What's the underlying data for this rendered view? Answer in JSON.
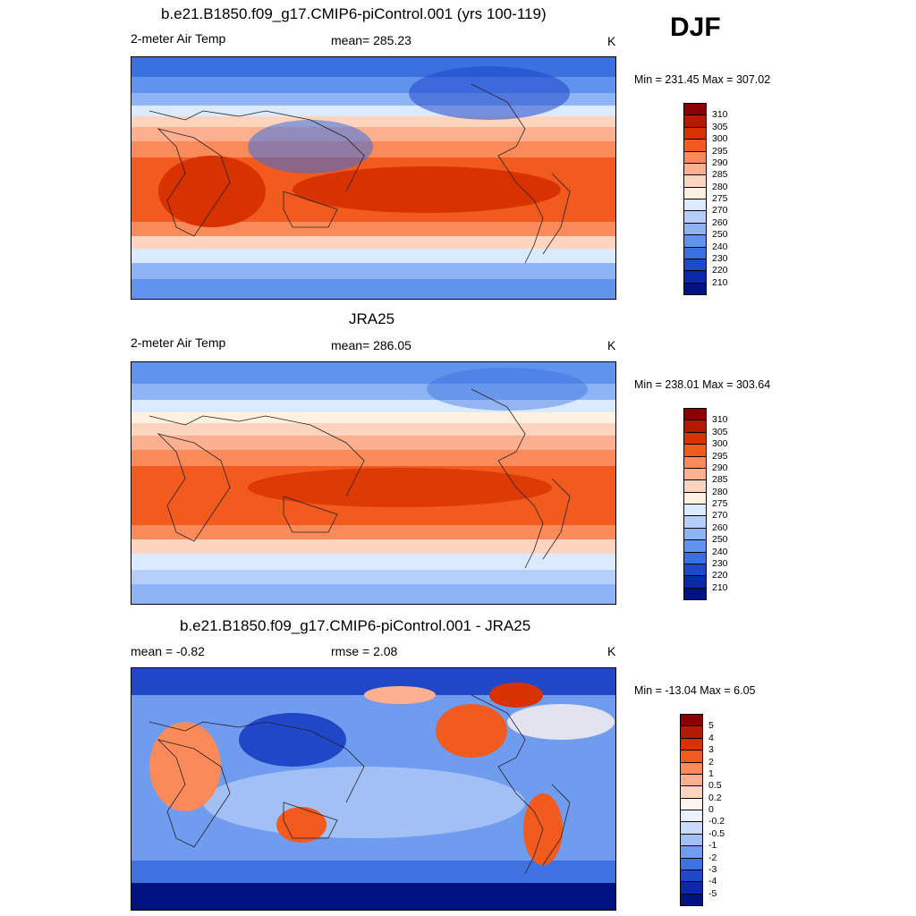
{
  "header": {
    "season": "DJF"
  },
  "panels": [
    {
      "title": "b.e21.B1850.f09_g17.CMIP6-piControl.001 (yrs 100-119)",
      "left_label": "2-meter Air Temp",
      "center_label": "mean= 285.23",
      "unit": "K",
      "minmax": "Min = 231.45 Max = 307.02",
      "colorbar": {
        "labels": [
          "310",
          "305",
          "300",
          "295",
          "290",
          "285",
          "280",
          "275",
          "270",
          "260",
          "250",
          "240",
          "230",
          "220",
          "210"
        ],
        "colors": [
          "#8b0000",
          "#b51a00",
          "#d83200",
          "#f25a1e",
          "#fa8a5a",
          "#fcb090",
          "#fdd5bf",
          "#fff0e0",
          "#dceaff",
          "#b6cffa",
          "#8fb4f5",
          "#5f93ee",
          "#3a70e0",
          "#1f47c8",
          "#0c2aa8",
          "#001380"
        ]
      }
    },
    {
      "title": "JRA25",
      "left_label": "2-meter Air Temp",
      "center_label": "mean= 286.05",
      "unit": "K",
      "minmax": "Min = 238.01 Max = 303.64",
      "colorbar": {
        "labels": [
          "310",
          "305",
          "300",
          "295",
          "290",
          "285",
          "280",
          "275",
          "270",
          "260",
          "250",
          "240",
          "230",
          "220",
          "210"
        ],
        "colors": [
          "#8b0000",
          "#b51a00",
          "#d83200",
          "#f25a1e",
          "#fa8a5a",
          "#fcb090",
          "#fdd5bf",
          "#fff0e0",
          "#dceaff",
          "#b6cffa",
          "#8fb4f5",
          "#5f93ee",
          "#3a70e0",
          "#1f47c8",
          "#0c2aa8",
          "#001380"
        ]
      }
    },
    {
      "title": "b.e21.B1850.f09_g17.CMIP6-piControl.001 - JRA25",
      "left_label": "mean =  -0.82",
      "center_label": "rmse =   2.08",
      "unit": "K",
      "minmax": "Min = -13.04 Max =   6.05",
      "colorbar": {
        "labels": [
          "5",
          "4",
          "3",
          "2",
          "1",
          "0.5",
          "0.2",
          "0",
          "-0.2",
          "-0.5",
          "-1",
          "-2",
          "-3",
          "-4",
          "-5"
        ],
        "colors": [
          "#8b0000",
          "#b51a00",
          "#d83200",
          "#f25a1e",
          "#fa8a5a",
          "#fcb090",
          "#fdd5bf",
          "#fff5ee",
          "#eaf1ff",
          "#c9dafb",
          "#a3c0f6",
          "#6f9cef",
          "#3f72e0",
          "#1f47c8",
          "#0c2aa8",
          "#001380"
        ]
      }
    }
  ]
}
